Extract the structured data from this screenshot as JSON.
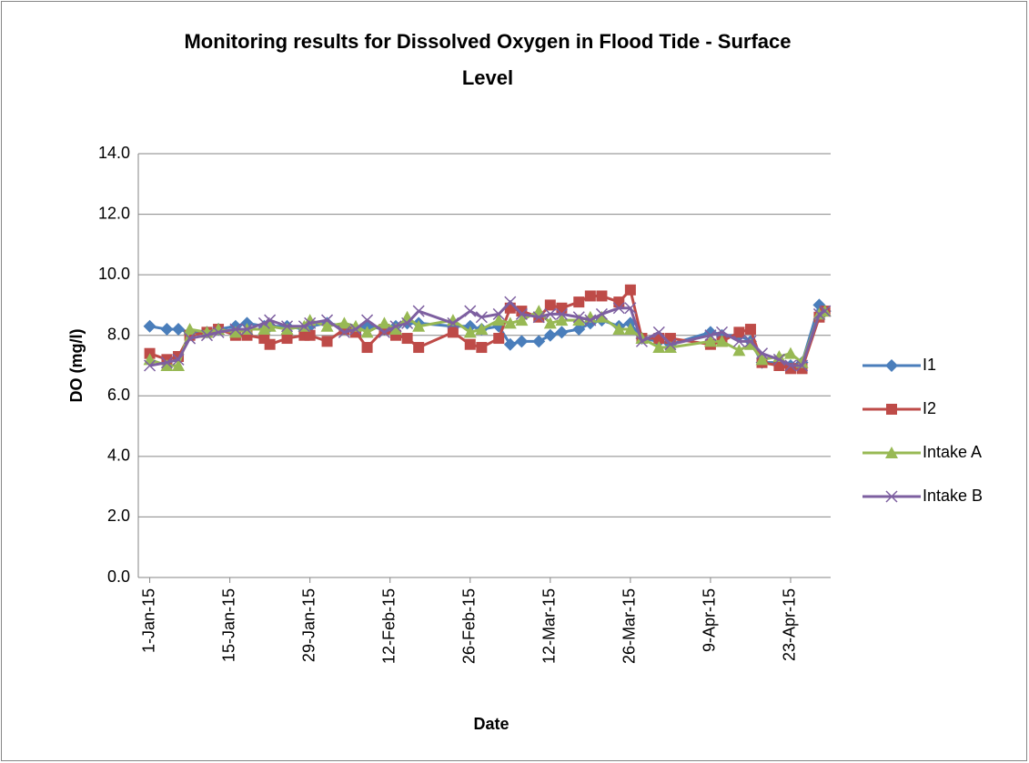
{
  "chart_data": {
    "type": "line",
    "title": "Monitoring results for Dissolved Oxygen in Flood Tide - Surface Level",
    "x_label": "Date",
    "y_label": "DO (mg/l)",
    "x": [
      "2015-01-01",
      "2015-01-04",
      "2015-01-06",
      "2015-01-08",
      "2015-01-11",
      "2015-01-13",
      "2015-01-16",
      "2015-01-18",
      "2015-01-21",
      "2015-01-22",
      "2015-01-25",
      "2015-01-28",
      "2015-01-29",
      "2015-02-01",
      "2015-02-04",
      "2015-02-06",
      "2015-02-08",
      "2015-02-11",
      "2015-02-13",
      "2015-02-15",
      "2015-02-17",
      "2015-02-23",
      "2015-02-26",
      "2015-02-28",
      "2015-03-03",
      "2015-03-05",
      "2015-03-07",
      "2015-03-10",
      "2015-03-12",
      "2015-03-14",
      "2015-03-17",
      "2015-03-19",
      "2015-03-21",
      "2015-03-24",
      "2015-03-26",
      "2015-03-28",
      "2015-03-31",
      "2015-04-02",
      "2015-04-09",
      "2015-04-11",
      "2015-04-14",
      "2015-04-16",
      "2015-04-18",
      "2015-04-21",
      "2015-04-23",
      "2015-04-25",
      "2015-04-28",
      "2015-04-29"
    ],
    "series": [
      {
        "name": "I1",
        "color": "#4a7ebb",
        "marker": "diamond",
        "values": [
          8.3,
          8.2,
          8.2,
          8.1,
          8.1,
          8.2,
          8.3,
          8.4,
          8.3,
          8.3,
          8.3,
          8.2,
          8.3,
          8.4,
          8.3,
          8.2,
          8.3,
          8.2,
          8.3,
          8.4,
          8.4,
          8.3,
          8.3,
          8.2,
          8.3,
          7.7,
          7.8,
          7.8,
          8.0,
          8.1,
          8.2,
          8.4,
          8.5,
          8.3,
          8.4,
          7.9,
          7.8,
          7.7,
          8.1,
          8.0,
          8.0,
          7.8,
          7.1,
          7.1,
          7.0,
          7.1,
          9.0,
          8.8
        ]
      },
      {
        "name": "I2",
        "color": "#be4b48",
        "marker": "square",
        "values": [
          7.4,
          7.2,
          7.3,
          8.0,
          8.1,
          8.2,
          8.0,
          8.0,
          7.9,
          7.7,
          7.9,
          8.0,
          8.0,
          7.8,
          8.2,
          8.1,
          7.6,
          8.2,
          8.0,
          7.9,
          7.6,
          8.1,
          7.7,
          7.6,
          7.9,
          8.9,
          8.8,
          8.6,
          9.0,
          8.9,
          9.1,
          9.3,
          9.3,
          9.1,
          9.5,
          7.9,
          7.9,
          7.9,
          7.7,
          7.8,
          8.1,
          8.2,
          7.1,
          7.0,
          6.9,
          6.9,
          8.6,
          8.8
        ]
      },
      {
        "name": "Intake A",
        "color": "#98b954",
        "marker": "triangle",
        "values": [
          7.2,
          7.0,
          7.0,
          8.2,
          8.1,
          8.2,
          8.1,
          8.2,
          8.2,
          8.3,
          8.2,
          8.3,
          8.5,
          8.3,
          8.4,
          8.3,
          8.1,
          8.4,
          8.2,
          8.6,
          8.3,
          8.5,
          8.1,
          8.2,
          8.5,
          8.4,
          8.5,
          8.8,
          8.4,
          8.5,
          8.5,
          8.6,
          8.6,
          8.2,
          8.2,
          7.9,
          7.6,
          7.6,
          7.8,
          7.8,
          7.5,
          7.7,
          7.2,
          7.3,
          7.4,
          7.1,
          8.7,
          8.8
        ]
      },
      {
        "name": "Intake B",
        "color": "#7d5fa0",
        "marker": "x",
        "values": [
          7.0,
          7.1,
          7.2,
          7.9,
          8.0,
          8.1,
          8.2,
          8.2,
          8.4,
          8.5,
          8.3,
          8.3,
          8.4,
          8.5,
          8.1,
          8.2,
          8.5,
          8.1,
          8.3,
          8.4,
          8.8,
          8.4,
          8.8,
          8.6,
          8.7,
          9.1,
          8.7,
          8.6,
          8.7,
          8.7,
          8.6,
          8.5,
          8.7,
          8.9,
          8.9,
          7.8,
          8.1,
          7.7,
          8.0,
          8.1,
          7.8,
          7.8,
          7.4,
          7.2,
          7.0,
          7.0,
          8.7,
          8.8
        ]
      }
    ],
    "xlim": [
      "2014-12-30",
      "2015-04-30"
    ],
    "xticks": [
      {
        "value": "2015-01-01",
        "label": "1-Jan-15"
      },
      {
        "value": "2015-01-15",
        "label": "15-Jan-15"
      },
      {
        "value": "2015-01-29",
        "label": "29-Jan-15"
      },
      {
        "value": "2015-02-12",
        "label": "12-Feb-15"
      },
      {
        "value": "2015-02-26",
        "label": "26-Feb-15"
      },
      {
        "value": "2015-03-12",
        "label": "12-Mar-15"
      },
      {
        "value": "2015-03-26",
        "label": "26-Mar-15"
      },
      {
        "value": "2015-04-09",
        "label": "9-Apr-15"
      },
      {
        "value": "2015-04-23",
        "label": "23-Apr-15"
      }
    ],
    "ylim": [
      0,
      14
    ],
    "yticks": [
      {
        "value": 0,
        "label": "0.0"
      },
      {
        "value": 2,
        "label": "2.0"
      },
      {
        "value": 4,
        "label": "4.0"
      },
      {
        "value": 6,
        "label": "6.0"
      },
      {
        "value": 8,
        "label": "8.0"
      },
      {
        "value": 10,
        "label": "10.0"
      },
      {
        "value": 12,
        "label": "12.0"
      },
      {
        "value": 14,
        "label": "14.0"
      }
    ],
    "grid": true,
    "legend": "right"
  }
}
